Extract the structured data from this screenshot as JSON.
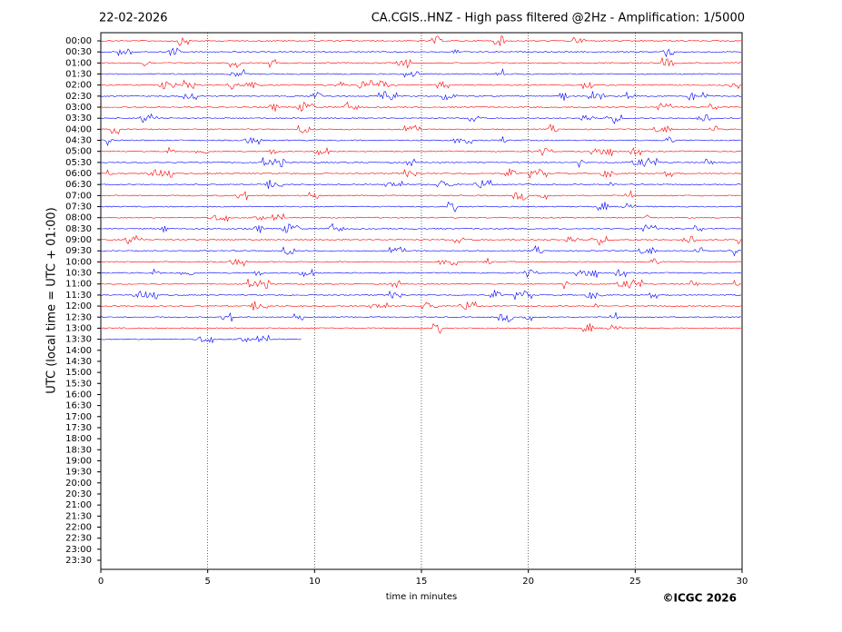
{
  "chart_data": {
    "type": "helicorder",
    "date": "22-02-2026",
    "title": "CA.CGIS..HNZ - High pass filtered @2Hz - Amplification: 1/5000",
    "y_label": "UTC (local time = UTC + 01:00)",
    "x_label": "time in minutes",
    "copyright": "©ICGC 2026",
    "categories": [
      "00:00",
      "00:30",
      "01:00",
      "01:30",
      "02:00",
      "02:30",
      "03:00",
      "03:30",
      "04:00",
      "04:30",
      "05:00",
      "05:30",
      "06:00",
      "06:30",
      "07:00",
      "07:30",
      "08:00",
      "08:30",
      "09:00",
      "09:30",
      "10:00",
      "10:30",
      "11:00",
      "11:30",
      "12:00",
      "12:30",
      "13:00",
      "13:30",
      "14:00",
      "14:30",
      "15:00",
      "15:30",
      "16:00",
      "16:30",
      "17:00",
      "17:30",
      "18:00",
      "18:30",
      "19:00",
      "19:30",
      "20:00",
      "20:30",
      "21:00",
      "21:30",
      "22:00",
      "22:30",
      "23:00",
      "23:30"
    ],
    "values": [
      30,
      30,
      30,
      30,
      30,
      30,
      30,
      30,
      30,
      30,
      30,
      30,
      30,
      30,
      30,
      30,
      30,
      30,
      30,
      30,
      30,
      30,
      30,
      30,
      30,
      30,
      30,
      9.4,
      null,
      null,
      null,
      null,
      null,
      null,
      null,
      null,
      null,
      null,
      null,
      null,
      null,
      null,
      null,
      null,
      null,
      null,
      null,
      null
    ],
    "trace_colors": [
      "#ff0000",
      "#0000ff"
    ],
    "xlim": [
      0,
      30
    ],
    "xticks": [
      0,
      5,
      10,
      15,
      20,
      25,
      30
    ],
    "grid": true
  }
}
